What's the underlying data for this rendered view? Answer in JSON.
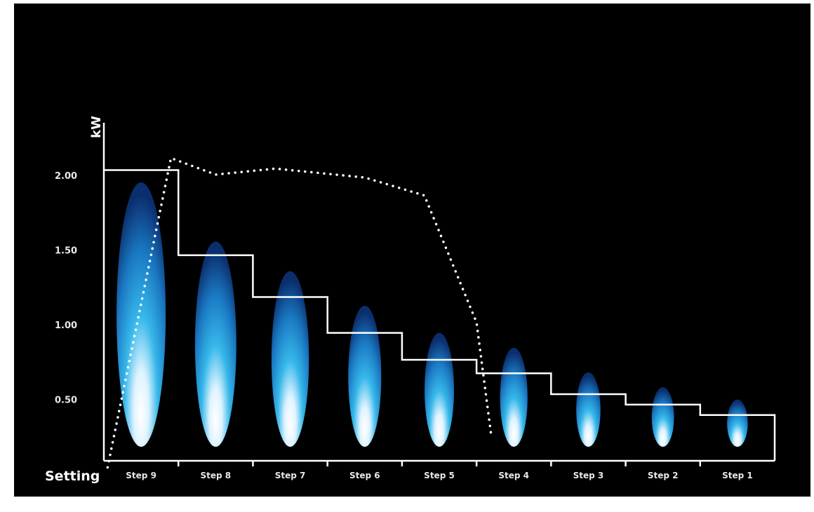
{
  "chart_data": {
    "type": "line",
    "ylabel": "kW",
    "xlabel": "Setting",
    "categories": [
      "Step 9",
      "Step 8",
      "Step 7",
      "Step 6",
      "Step 5",
      "Step 4",
      "Step 3",
      "Step 2",
      "Step 1"
    ],
    "yticks": [
      "2.00",
      "1.50",
      "1.00",
      "0.50"
    ],
    "ylim": [
      0,
      2.5
    ],
    "series": [
      {
        "style": "solid-step",
        "values": [
          2.04,
          1.47,
          1.19,
          0.95,
          0.77,
          0.68,
          0.54,
          0.47,
          0.4
        ]
      },
      {
        "style": "dotted",
        "points": [
          {
            "x": 0.05,
            "y": 0.05
          },
          {
            "x": 0.9,
            "y": 2.12
          },
          {
            "x": 1.5,
            "y": 2.01
          },
          {
            "x": 2.3,
            "y": 2.05
          },
          {
            "x": 3.5,
            "y": 1.99
          },
          {
            "x": 4.3,
            "y": 1.87
          },
          {
            "x": 5.0,
            "y": 1.02
          },
          {
            "x": 5.2,
            "y": 0.25
          }
        ]
      }
    ],
    "flame_levels": [
      1.0,
      0.76,
      0.64,
      0.5,
      0.39,
      0.33,
      0.23,
      0.17,
      0.12
    ],
    "colors": {
      "background": "#000000",
      "lines": "#ffffff",
      "flame_core": "#eaf6ff",
      "flame_mid": "#2fb3e6",
      "flame_edge": "#0b3f86"
    },
    "grid": false,
    "legend": "none"
  }
}
